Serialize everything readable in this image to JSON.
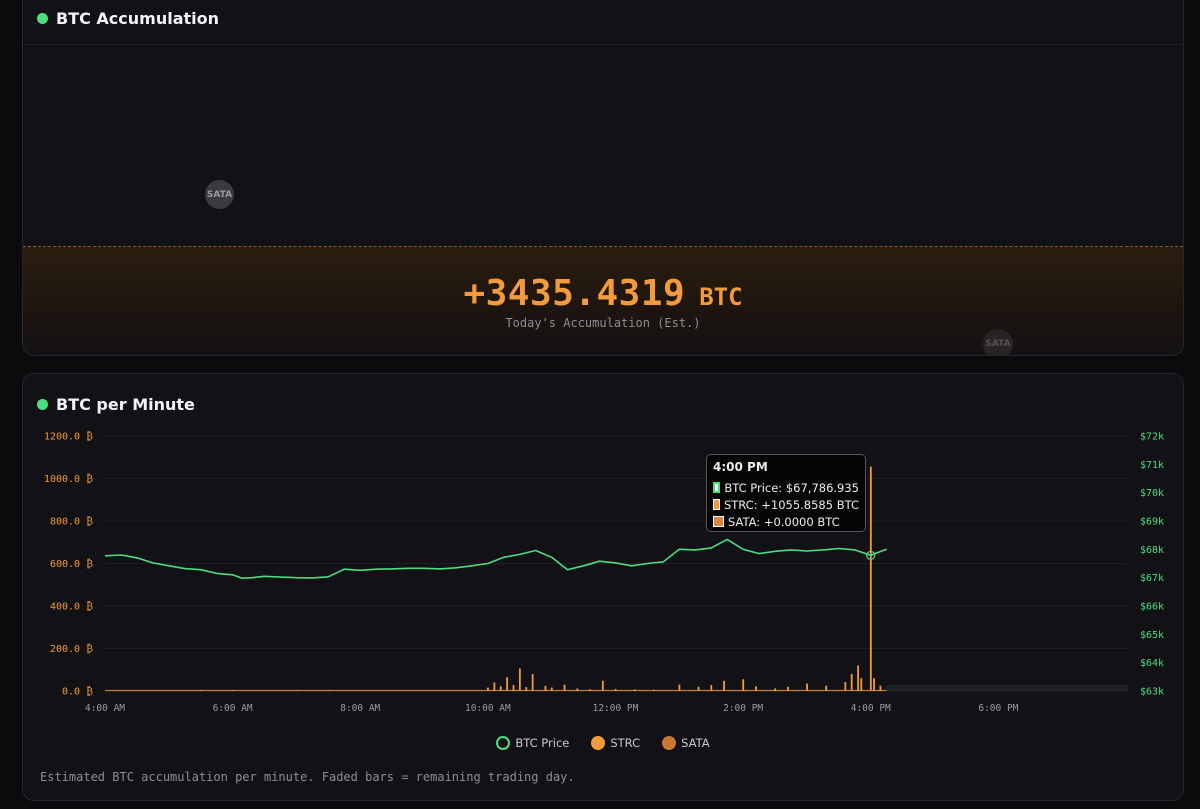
{
  "accumulation_card": {
    "title": "BTC Accumulation",
    "value": "+3435.4319",
    "unit": "BTC",
    "caption": "Today's Accumulation (Est.)",
    "bubbles": [
      {
        "label": "SATA",
        "color": "#3a3a40"
      },
      {
        "label": "SATA",
        "color": "#2a2326"
      }
    ]
  },
  "per_minute_card": {
    "title": "BTC per Minute",
    "footnote": "Estimated BTC accumulation per minute. Faded bars = remaining trading day.",
    "tooltip": {
      "title": "4:00 PM",
      "rows": [
        {
          "label": "BTC Price: $67,786.935",
          "color": "#4ade80"
        },
        {
          "label": "STRC: +1055.8585 BTC",
          "color": "#f29a3c"
        },
        {
          "label": "SATA: +0.0000 BTC",
          "color": "#d9883a"
        }
      ]
    },
    "legend": [
      {
        "label": "BTC Price",
        "color": "#4ade80",
        "style": "ring"
      },
      {
        "label": "STRC",
        "color": "#f29a3c",
        "style": "fill"
      },
      {
        "label": "SATA",
        "color": "#c9782f",
        "style": "fill"
      }
    ]
  },
  "colors": {
    "accent_orange": "#f29a3c",
    "price_green": "#4ade80",
    "status_dot": "#4ade80"
  },
  "chart_data": {
    "type": "bar",
    "title": "BTC per Minute",
    "x_ticks": [
      "4:00 AM",
      "6:00 AM",
      "8:00 AM",
      "10:00 AM",
      "12:00 PM",
      "2:00 PM",
      "4:00 PM",
      "6:00 PM"
    ],
    "x_range_hours": [
      4,
      20
    ],
    "y_left": {
      "ticks": [
        "0.0 ₿",
        "200.0 ₿",
        "400.0 ₿",
        "600.0 ₿",
        "800.0 ₿",
        "1000.0 ₿",
        "1200.0 ₿"
      ],
      "range": [
        0,
        1200
      ]
    },
    "y_right": {
      "ticks": [
        "$63k",
        "$64k",
        "$65k",
        "$66k",
        "$67k",
        "$68k",
        "$69k",
        "$70k",
        "$71k",
        "$72k"
      ],
      "range": [
        63000,
        72000
      ]
    },
    "grid": true,
    "legend_position": "bottom",
    "series": [
      {
        "name": "BTC Price",
        "type": "line",
        "axis": "right",
        "points": [
          [
            4.0,
            67770
          ],
          [
            4.25,
            67800
          ],
          [
            4.5,
            67700
          ],
          [
            4.75,
            67520
          ],
          [
            5.0,
            67420
          ],
          [
            5.25,
            67320
          ],
          [
            5.5,
            67280
          ],
          [
            5.75,
            67150
          ],
          [
            6.0,
            67100
          ],
          [
            6.15,
            66980
          ],
          [
            6.3,
            67000
          ],
          [
            6.5,
            67050
          ],
          [
            6.75,
            67020
          ],
          [
            7.0,
            67000
          ],
          [
            7.25,
            66990
          ],
          [
            7.5,
            67030
          ],
          [
            7.75,
            67300
          ],
          [
            8.0,
            67260
          ],
          [
            8.25,
            67300
          ],
          [
            8.5,
            67310
          ],
          [
            8.75,
            67330
          ],
          [
            9.0,
            67330
          ],
          [
            9.25,
            67310
          ],
          [
            9.5,
            67350
          ],
          [
            9.75,
            67420
          ],
          [
            10.0,
            67500
          ],
          [
            10.25,
            67720
          ],
          [
            10.5,
            67820
          ],
          [
            10.75,
            67960
          ],
          [
            11.0,
            67720
          ],
          [
            11.15,
            67450
          ],
          [
            11.25,
            67280
          ],
          [
            11.5,
            67420
          ],
          [
            11.75,
            67580
          ],
          [
            12.0,
            67520
          ],
          [
            12.25,
            67420
          ],
          [
            12.5,
            67500
          ],
          [
            12.75,
            67560
          ],
          [
            13.0,
            68000
          ],
          [
            13.25,
            67980
          ],
          [
            13.5,
            68050
          ],
          [
            13.75,
            68350
          ],
          [
            14.0,
            68000
          ],
          [
            14.25,
            67850
          ],
          [
            14.5,
            67930
          ],
          [
            14.75,
            67980
          ],
          [
            15.0,
            67940
          ],
          [
            15.25,
            67980
          ],
          [
            15.5,
            68030
          ],
          [
            15.75,
            67980
          ],
          [
            16.0,
            67787
          ],
          [
            16.1,
            67880
          ],
          [
            16.25,
            68000
          ]
        ]
      },
      {
        "name": "STRC",
        "type": "bar",
        "axis": "left",
        "points": [
          [
            5.5,
            4
          ],
          [
            6.0,
            4
          ],
          [
            7.0,
            3
          ],
          [
            7.5,
            4
          ],
          [
            8.0,
            3
          ],
          [
            9.0,
            4
          ],
          [
            9.5,
            3
          ],
          [
            10.0,
            16
          ],
          [
            10.1,
            40
          ],
          [
            10.2,
            22
          ],
          [
            10.3,
            65
          ],
          [
            10.4,
            28
          ],
          [
            10.5,
            106
          ],
          [
            10.6,
            18
          ],
          [
            10.7,
            80
          ],
          [
            10.9,
            24
          ],
          [
            11.0,
            16
          ],
          [
            11.2,
            30
          ],
          [
            11.4,
            12
          ],
          [
            11.6,
            8
          ],
          [
            11.8,
            48
          ],
          [
            12.0,
            10
          ],
          [
            12.3,
            8
          ],
          [
            12.6,
            6
          ],
          [
            13.0,
            30
          ],
          [
            13.3,
            20
          ],
          [
            13.5,
            28
          ],
          [
            13.7,
            48
          ],
          [
            14.0,
            55
          ],
          [
            14.2,
            22
          ],
          [
            14.5,
            12
          ],
          [
            14.7,
            20
          ],
          [
            15.0,
            35
          ],
          [
            15.3,
            25
          ],
          [
            15.6,
            42
          ],
          [
            15.7,
            80
          ],
          [
            15.8,
            120
          ],
          [
            15.85,
            60
          ],
          [
            16.0,
            1056
          ],
          [
            16.05,
            60
          ],
          [
            16.15,
            25
          ]
        ]
      },
      {
        "name": "SATA",
        "type": "bar",
        "axis": "left",
        "points": [
          [
            4.5,
            3
          ],
          [
            5.0,
            3
          ],
          [
            6.5,
            3
          ],
          [
            8.5,
            3
          ],
          [
            16.0,
            0
          ]
        ]
      }
    ],
    "faded_region_hours": [
      16.25,
      20
    ]
  }
}
